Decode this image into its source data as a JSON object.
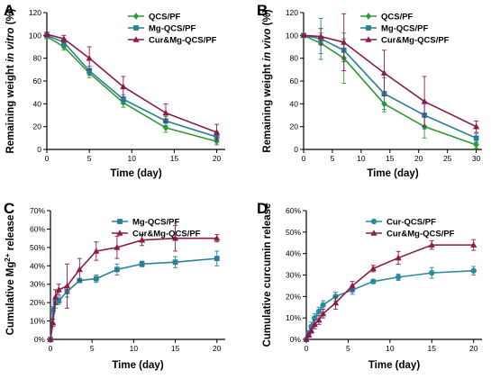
{
  "colors": {
    "QCS/PF": "#2e9a33",
    "Mg-QCS/PF": "#2a7e95",
    "Cur&Mg-QCS/PF": "#8c1a4a",
    "Cur-QCS/PF": "#2a8aa0"
  },
  "chart_data": [
    {
      "panel": "A",
      "type": "line",
      "xlabel": "Time (day)",
      "ylabel_parts": [
        {
          "text": "Remaining weight ",
          "italic": false
        },
        {
          "text": "in vitro",
          "italic": true
        },
        {
          "text": " (%)",
          "italic": false
        }
      ],
      "xlim": [
        0,
        21
      ],
      "ylim": [
        0,
        120
      ],
      "xticks": [
        0,
        5,
        10,
        15,
        20
      ],
      "yticks": [
        0,
        20,
        40,
        60,
        80,
        100,
        120
      ],
      "ytick_suffix": "",
      "legend_position": "top-right",
      "series": [
        {
          "name": "QCS/PF",
          "marker": "diamond",
          "x": [
            0,
            2,
            5,
            9,
            14,
            20
          ],
          "y": [
            99,
            90,
            67,
            41,
            19,
            7
          ],
          "err": [
            2,
            3,
            4,
            4,
            4,
            3
          ]
        },
        {
          "name": "Mg-QCS/PF",
          "marker": "square",
          "x": [
            0,
            2,
            5,
            9,
            14,
            20
          ],
          "y": [
            100,
            94,
            69,
            44,
            25,
            11
          ],
          "err": [
            2,
            3,
            4,
            4,
            4,
            4
          ]
        },
        {
          "name": "Cur&Mg-QCS/PF",
          "marker": "triangle",
          "x": [
            0,
            2,
            5,
            9,
            14,
            20
          ],
          "y": [
            101,
            97,
            80,
            55,
            32,
            15
          ],
          "err": [
            2,
            3,
            10,
            9,
            8,
            7
          ]
        }
      ]
    },
    {
      "panel": "B",
      "type": "line",
      "xlabel": "Time (day)",
      "ylabel_parts": [
        {
          "text": "Remaining weight ",
          "italic": false
        },
        {
          "text": "in vivo",
          "italic": true
        },
        {
          "text": " (%)",
          "italic": false
        }
      ],
      "xlim": [
        0,
        31
      ],
      "ylim": [
        0,
        120
      ],
      "xticks": [
        0,
        5,
        10,
        15,
        20,
        25,
        30
      ],
      "yticks": [
        0,
        20,
        40,
        60,
        80,
        100,
        120
      ],
      "ytick_suffix": "",
      "legend_position": "top-right",
      "series": [
        {
          "name": "QCS/PF",
          "marker": "diamond",
          "x": [
            0,
            3,
            7,
            14,
            21,
            30
          ],
          "y": [
            100,
            93,
            80,
            40,
            20,
            4
          ],
          "err": [
            1,
            9,
            22,
            7,
            10,
            3
          ]
        },
        {
          "name": "Mg-QCS/PF",
          "marker": "square",
          "x": [
            0,
            3,
            7,
            14,
            21,
            30
          ],
          "y": [
            100,
            97,
            87,
            49,
            30,
            10
          ],
          "err": [
            1,
            18,
            10,
            14,
            12,
            4
          ]
        },
        {
          "name": "Cur&Mg-QCS/PF",
          "marker": "triangle",
          "x": [
            0,
            3,
            7,
            14,
            21,
            30
          ],
          "y": [
            100,
            99,
            94,
            67,
            42,
            20
          ],
          "err": [
            1,
            7,
            25,
            20,
            22,
            5
          ]
        }
      ]
    },
    {
      "panel": "C",
      "type": "line",
      "xlabel": "Time (day)",
      "ylabel_parts": [
        {
          "text": "Cumulative Mg",
          "italic": false
        },
        {
          "text": "2+",
          "italic": false,
          "sup": true
        },
        {
          "text": " release",
          "italic": false
        }
      ],
      "xlim": [
        0,
        21
      ],
      "ylim": [
        0,
        70
      ],
      "xticks": [
        0,
        5,
        10,
        15,
        20
      ],
      "yticks": [
        0,
        10,
        20,
        30,
        40,
        50,
        60,
        70
      ],
      "ytick_suffix": "%",
      "legend_position": "top-center",
      "series": [
        {
          "name": "Mg-QCS/PF",
          "marker": "square",
          "x": [
            0,
            0.3,
            0.6,
            1,
            2,
            3.5,
            5.5,
            8,
            11,
            15,
            20
          ],
          "y": [
            0,
            16,
            20,
            21,
            26,
            32,
            33,
            38,
            41,
            42,
            44
          ],
          "err": [
            0,
            2,
            3,
            2,
            3,
            1,
            2,
            3,
            1.5,
            3,
            4
          ]
        },
        {
          "name": "Cur&Mg-QCS/PF",
          "marker": "triangle",
          "x": [
            0,
            0.3,
            0.6,
            1,
            2,
            3.5,
            5.5,
            8,
            11,
            15,
            20
          ],
          "y": [
            0,
            9,
            23,
            27,
            29,
            38,
            48,
            50,
            54,
            55,
            55
          ],
          "err": [
            0,
            2,
            4,
            3,
            12,
            6,
            5,
            6,
            3,
            7,
            2
          ]
        }
      ]
    },
    {
      "panel": "D",
      "type": "line",
      "xlabel": "Time (day)",
      "ylabel_parts": [
        {
          "text": "Cumulative curcumin release",
          "italic": false
        }
      ],
      "xlim": [
        0,
        21
      ],
      "ylim": [
        0,
        60
      ],
      "xticks": [
        0,
        5,
        10,
        15,
        20
      ],
      "yticks": [
        0,
        10,
        20,
        30,
        40,
        50,
        60
      ],
      "ytick_suffix": "%",
      "legend_position": "top-center",
      "series": [
        {
          "name": "Cur-QCS/PF",
          "marker": "circle",
          "x": [
            0,
            0.3,
            0.6,
            1,
            1.5,
            2,
            3.5,
            5.5,
            8,
            11,
            15,
            20
          ],
          "y": [
            0,
            3,
            6,
            10,
            13,
            16,
            20,
            23,
            27,
            29,
            31,
            32
          ],
          "err": [
            0,
            1,
            2,
            2,
            2,
            2,
            2,
            2,
            1,
            1.5,
            2.5,
            2
          ]
        },
        {
          "name": "Cur&Mg-QCS/PF",
          "marker": "triangle",
          "x": [
            0,
            0.3,
            0.6,
            1,
            1.5,
            2,
            3.5,
            5.5,
            8,
            11,
            15,
            20
          ],
          "y": [
            0,
            2,
            4,
            7,
            9,
            12,
            17,
            25,
            33,
            38,
            44,
            44
          ],
          "err": [
            0,
            1,
            1,
            2,
            2,
            2,
            3,
            2,
            1.5,
            3,
            2,
            2.5
          ]
        }
      ]
    }
  ]
}
